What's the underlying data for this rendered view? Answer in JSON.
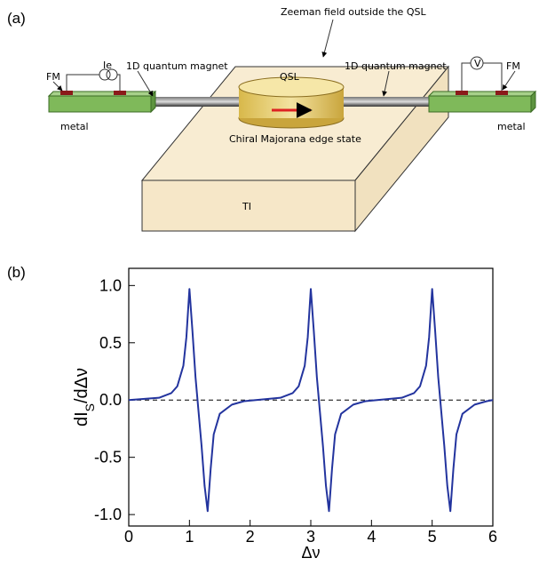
{
  "panel_a": {
    "label": "(a)",
    "zeeman": "Zeeman field outside the QSL",
    "current": "Ie",
    "voltage": "V",
    "fm_left": "FM",
    "fm_right": "FM",
    "magnet_left": "1D quantum magnet",
    "magnet_right": "1D quantum magnet",
    "qsl": "QSL",
    "metal_left": "metal",
    "metal_right": "metal",
    "edge_state": "Chiral Majorana edge state",
    "ti": "TI"
  },
  "panel_b_label": "(b)",
  "chart_data": {
    "type": "line",
    "ylabel_parts": [
      "dI",
      "S",
      "/dΔν"
    ],
    "xlabel": "Δν",
    "xlim": [
      0,
      6
    ],
    "xticks": [
      0,
      1,
      2,
      3,
      4,
      5,
      6
    ],
    "ylim": [
      -1.1,
      1.15
    ],
    "yticks": [
      {
        "value": 1,
        "label": "1.0"
      },
      {
        "value": 0.5,
        "label": "0.5"
      },
      {
        "value": 0,
        "label": "0.0"
      },
      {
        "value": -0.5,
        "label": "-0.5"
      },
      {
        "value": -1,
        "label": "-1.0"
      }
    ],
    "reference_line": 0,
    "series": [
      {
        "color": "#23349e",
        "x": [
          0,
          0.5,
          0.7,
          0.8,
          0.9,
          0.95,
          1,
          1.05,
          1.1,
          1.15,
          1.2,
          1.25,
          1.3,
          1.35,
          1.4,
          1.5,
          1.7,
          1.9,
          2.5,
          2.7,
          2.8,
          2.9,
          2.95,
          3,
          3.05,
          3.1,
          3.15,
          3.2,
          3.25,
          3.3,
          3.35,
          3.4,
          3.5,
          3.7,
          3.9,
          4.5,
          4.7,
          4.8,
          4.9,
          4.95,
          5,
          5.05,
          5.1,
          5.15,
          5.2,
          5.25,
          5.3,
          5.35,
          5.4,
          5.5,
          5.7,
          5.9,
          6
        ],
        "values": [
          0,
          0.02,
          0.06,
          0.12,
          0.3,
          0.55,
          0.97,
          0.6,
          0.2,
          -0.1,
          -0.4,
          -0.75,
          -0.97,
          -0.6,
          -0.3,
          -0.12,
          -0.04,
          -0.01,
          0.02,
          0.06,
          0.12,
          0.3,
          0.55,
          0.97,
          0.6,
          0.2,
          -0.1,
          -0.4,
          -0.75,
          -0.97,
          -0.6,
          -0.3,
          -0.12,
          -0.04,
          -0.01,
          0.02,
          0.06,
          0.12,
          0.3,
          0.55,
          0.97,
          0.6,
          0.2,
          -0.1,
          -0.4,
          -0.75,
          -0.97,
          -0.6,
          -0.3,
          -0.12,
          -0.04,
          -0.01,
          0
        ]
      }
    ]
  }
}
